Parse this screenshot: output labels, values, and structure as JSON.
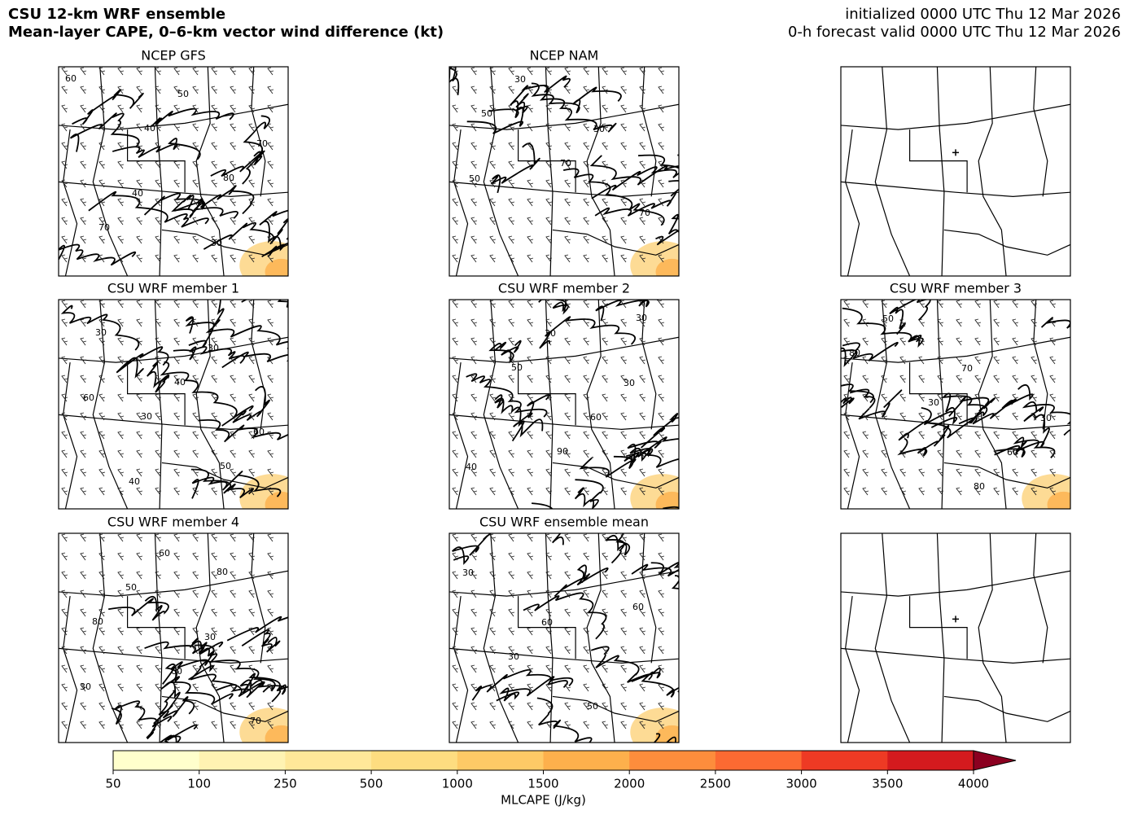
{
  "header": {
    "title_line1": "CSU 12-km WRF ensemble",
    "title_line2": "Mean-layer CAPE, 0–6-km vector wind difference (kt)",
    "init": "initialized 0000 UTC Thu 12 Mar 2026",
    "valid": "0-h forecast valid 0000 UTC Thu 12 Mar 2026"
  },
  "panels": [
    {
      "title": "NCEP GFS",
      "contour_labels": [
        "60",
        "40",
        "80",
        "70",
        "50",
        "70",
        "40",
        "30"
      ]
    },
    {
      "title": "NCEP NAM",
      "contour_labels": [
        "50",
        "70",
        "70",
        "30",
        "30",
        "50"
      ]
    },
    {},
    {
      "title": "CSU WRF member 1",
      "contour_labels": [
        "30",
        "50",
        "30",
        "40",
        "60",
        "40",
        "30",
        "60"
      ]
    },
    {
      "title": "CSU WRF member 2",
      "contour_labels": [
        "90",
        "30",
        "50",
        "60",
        "40",
        "30",
        "30"
      ]
    },
    {
      "title": "CSU WRF member 3",
      "contour_labels": [
        "80",
        "80",
        "30",
        "60",
        "50",
        "70",
        "30"
      ]
    },
    {
      "title": "CSU WRF member 4",
      "contour_labels": [
        "80",
        "80",
        "60",
        "70",
        "50",
        "30",
        "30",
        "60"
      ]
    },
    {
      "title": "CSU WRF ensemble mean",
      "contour_labels": [
        "60",
        "30",
        "50",
        "30",
        "60"
      ]
    },
    {}
  ],
  "colorbar": {
    "label": "MLCAPE (J/kg)",
    "ticks": [
      50,
      100,
      250,
      500,
      1000,
      1500,
      2000,
      2500,
      3000,
      3500,
      4000
    ],
    "colors": [
      "#ffffcc",
      "#fff3b2",
      "#ffe899",
      "#fedd80",
      "#feca66",
      "#fdb04c",
      "#fd8d3c",
      "#fc6a32",
      "#ee3a24",
      "#d41a1e"
    ],
    "extend_color": "#8b0020"
  }
}
